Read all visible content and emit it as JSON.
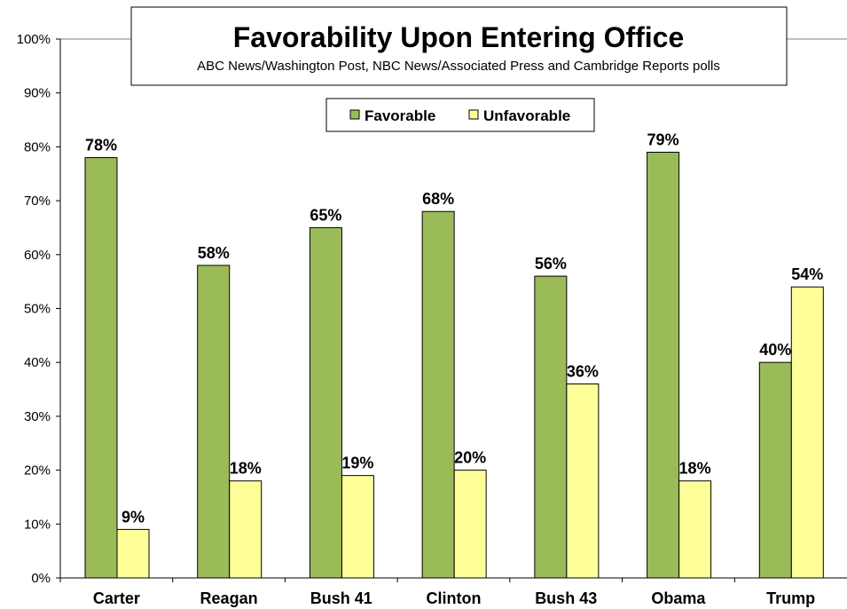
{
  "chart_data": {
    "type": "bar",
    "title": "Favorability Upon Entering Office",
    "subtitle": "ABC News/Washington  Post, NBC News/Associated Press and Cambridge Reports polls",
    "xlabel": "",
    "ylabel": "",
    "ylim": [
      0,
      100
    ],
    "yticks": [
      "0%",
      "10%",
      "20%",
      "30%",
      "40%",
      "50%",
      "60%",
      "70%",
      "80%",
      "90%",
      "100%"
    ],
    "categories": [
      "Carter",
      "Reagan",
      "Bush 41",
      "Clinton",
      "Bush 43",
      "Obama",
      "Trump"
    ],
    "series": [
      {
        "name": "Favorable",
        "color": "#9BBB59",
        "values": [
          78,
          58,
          65,
          68,
          56,
          79,
          40
        ],
        "labels": [
          "78%",
          "58%",
          "65%",
          "68%",
          "56%",
          "79%",
          "40%"
        ]
      },
      {
        "name": "Unfavorable",
        "color": "#FFFF99",
        "values": [
          9,
          18,
          19,
          20,
          36,
          18,
          54
        ],
        "labels": [
          "9%",
          "18%",
          "19%",
          "20%",
          "36%",
          "18%",
          "54%"
        ]
      }
    ],
    "grid": false,
    "legend": "top-center"
  }
}
